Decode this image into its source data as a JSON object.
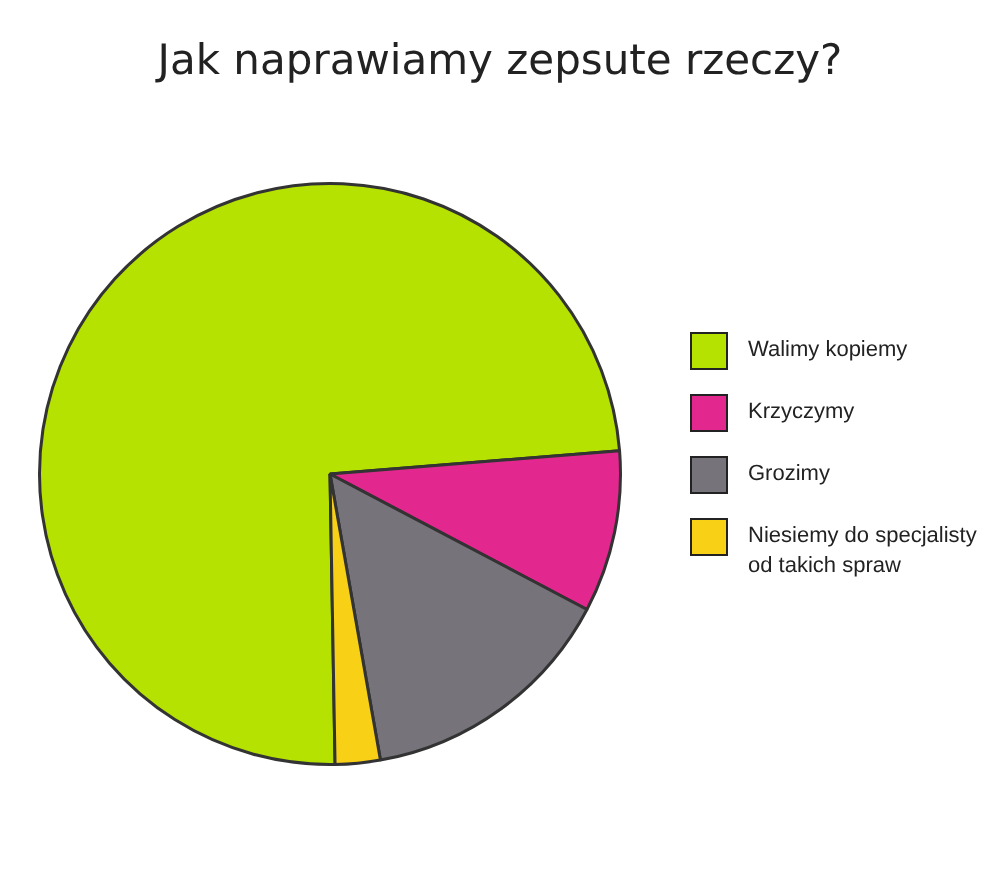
{
  "chart_data": {
    "type": "pie",
    "title": "Jak naprawiamy zepsute rzeczy?",
    "categories": [
      "Walimy kopiemy",
      "Krzyczymy",
      "Grozimy",
      "Niesiemy do specjalisty od takich spraw"
    ],
    "values": [
      74,
      9,
      14.5,
      2.5
    ],
    "colors": [
      "#b5e200",
      "#e2288f",
      "#77737a",
      "#f8d117"
    ],
    "legend": "right"
  }
}
